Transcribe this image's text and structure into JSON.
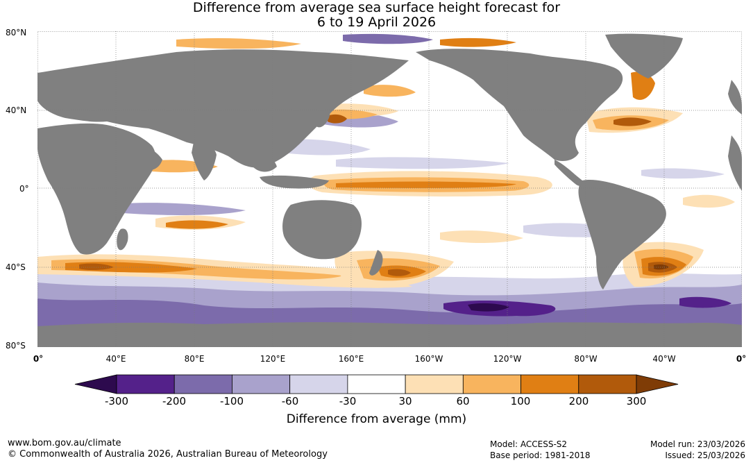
{
  "title": {
    "line1": "Difference from average sea surface height forecast for",
    "line2": "6 to 19 April 2026"
  },
  "axes": {
    "lat_labels": [
      "80°N",
      "40°N",
      "0°",
      "40°S",
      "80°S"
    ],
    "lon_labels": [
      "0°",
      "40°E",
      "80°E",
      "120°E",
      "160°E",
      "160°W",
      "120°W",
      "80°W",
      "40°W",
      "0°"
    ]
  },
  "legend": {
    "ticks": [
      "-300",
      "-200",
      "-100",
      "-60",
      "-30",
      "30",
      "60",
      "100",
      "200",
      "300"
    ],
    "colors": [
      "#2d0a4e",
      "#54218a",
      "#7c6bab",
      "#a9a2cc",
      "#d6d5ea",
      "#ffffff",
      "#fde0b5",
      "#f8b45e",
      "#e07f14",
      "#b15a0b",
      "#7f3c06"
    ],
    "label": "Difference from average (mm)"
  },
  "footer": {
    "website": "www.bom.gov.au/climate",
    "copyright": "© Commonwealth of Australia 2026, Australian Bureau of Meteorology",
    "model": "Model: ACCESS-S2",
    "base_period": "Base period: 1981-2018",
    "model_run": "Model run: 23/03/2026",
    "issued": "Issued: 25/03/2026"
  },
  "colors": {
    "land": "#808080",
    "grid": "#7a7a7a"
  }
}
